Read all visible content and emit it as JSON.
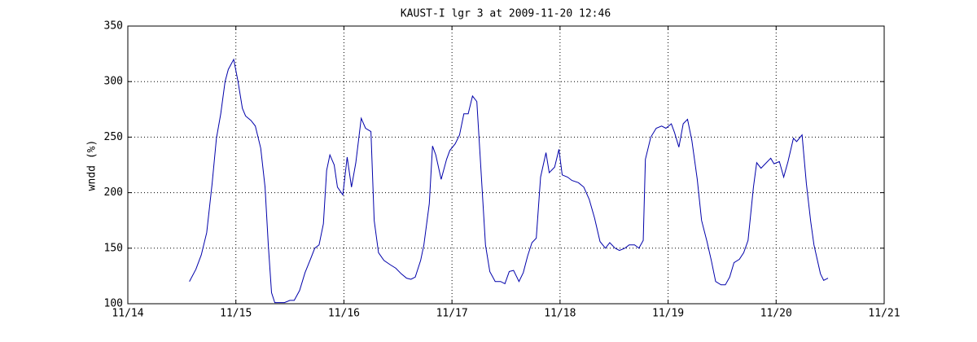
{
  "chart_data": {
    "type": "line",
    "title": "KAUST-I lgr 3 at 2009-11-20 12:46",
    "ylabel": "wndd (%)",
    "x": [
      14.57,
      14.63,
      14.68,
      14.73,
      14.78,
      14.82,
      14.86,
      14.9,
      14.93,
      14.98,
      15.02,
      15.06,
      15.09,
      15.14,
      15.18,
      15.23,
      15.27,
      15.3,
      15.33,
      15.36,
      15.41,
      15.45,
      15.5,
      15.54,
      15.59,
      15.64,
      15.69,
      15.73,
      15.77,
      15.81,
      15.84,
      15.87,
      15.91,
      15.94,
      15.99,
      16.03,
      16.07,
      16.11,
      16.16,
      16.2,
      16.25,
      16.28,
      16.32,
      16.37,
      16.43,
      16.48,
      16.53,
      16.58,
      16.62,
      16.66,
      16.71,
      16.74,
      16.79,
      16.82,
      16.85,
      16.9,
      16.95,
      16.98,
      17.03,
      17.07,
      17.11,
      17.15,
      17.19,
      17.23,
      17.26,
      17.31,
      17.35,
      17.4,
      17.45,
      17.49,
      17.53,
      17.57,
      17.62,
      17.66,
      17.7,
      17.74,
      17.78,
      17.82,
      17.87,
      17.9,
      17.95,
      17.99,
      18.02,
      18.07,
      18.11,
      18.17,
      18.22,
      18.27,
      18.32,
      18.37,
      18.42,
      18.46,
      18.51,
      18.55,
      18.6,
      18.64,
      18.69,
      18.73,
      18.77,
      18.79,
      18.84,
      18.89,
      18.94,
      18.98,
      19.03,
      19.06,
      19.1,
      19.14,
      19.18,
      19.22,
      19.27,
      19.31,
      19.36,
      19.4,
      19.44,
      19.49,
      19.53,
      19.57,
      19.61,
      19.66,
      19.7,
      19.74,
      19.79,
      19.82,
      19.86,
      19.9,
      19.95,
      19.98,
      20.03,
      20.07,
      20.11,
      20.16,
      20.19,
      20.24,
      20.28,
      20.32,
      20.35,
      20.41,
      20.44,
      20.48
    ],
    "series": [
      {
        "name": "wndd",
        "color": "#0000aa",
        "values": [
          120,
          131,
          144,
          164,
          208,
          249,
          271,
          300,
          311,
          320,
          300,
          276,
          269,
          265,
          260,
          240,
          205,
          153,
          110,
          101,
          101,
          101,
          103,
          103,
          112,
          128,
          140,
          150,
          153,
          172,
          220,
          234,
          225,
          205,
          198,
          232,
          205,
          227,
          267,
          258,
          255,
          175,
          146,
          139,
          135,
          132,
          127,
          123,
          122,
          124,
          139,
          153,
          190,
          242,
          234,
          212,
          230,
          238,
          244,
          252,
          271,
          271,
          287,
          282,
          234,
          153,
          129,
          120,
          120,
          118,
          129,
          130,
          120,
          128,
          143,
          155,
          159,
          214,
          236,
          218,
          223,
          239,
          216,
          214,
          211,
          209,
          205,
          194,
          177,
          156,
          150,
          155,
          150,
          148,
          150,
          153,
          153,
          150,
          157,
          230,
          250,
          258,
          260,
          258,
          262,
          254,
          241,
          262,
          266,
          247,
          212,
          175,
          156,
          139,
          120,
          117,
          117,
          124,
          137,
          140,
          146,
          157,
          205,
          227,
          222,
          226,
          231,
          226,
          228,
          214,
          228,
          249,
          246,
          252,
          208,
          174,
          153,
          127,
          121,
          123
        ]
      }
    ],
    "xlim": [
      14,
      21
    ],
    "xticks": [
      {
        "value": 14,
        "label": "11/14"
      },
      {
        "value": 15,
        "label": "11/15"
      },
      {
        "value": 16,
        "label": "11/16"
      },
      {
        "value": 17,
        "label": "11/17"
      },
      {
        "value": 18,
        "label": "11/18"
      },
      {
        "value": 19,
        "label": "11/19"
      },
      {
        "value": 20,
        "label": "11/20"
      },
      {
        "value": 21,
        "label": "11/21"
      }
    ],
    "ylim": [
      100,
      350
    ],
    "yticks": [
      100,
      150,
      200,
      250,
      300,
      350
    ],
    "grid": true
  }
}
